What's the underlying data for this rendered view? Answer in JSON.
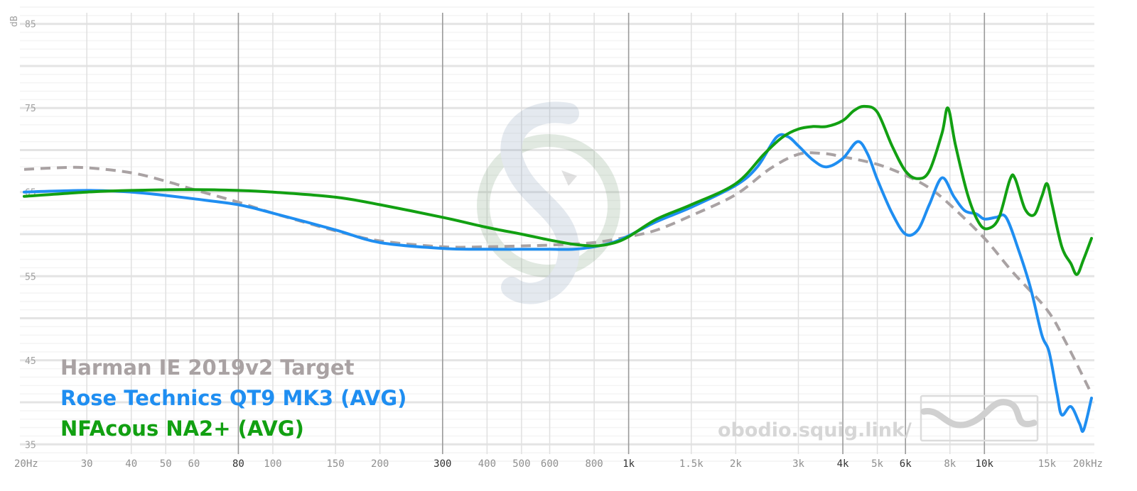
{
  "chart_data": {
    "type": "line",
    "xscale": "log",
    "xlim": [
      20,
      20000
    ],
    "ylim": [
      33,
      87
    ],
    "ylabel": "dB",
    "yticks": [
      {
        "v": 85,
        "label": "85"
      },
      {
        "v": 75,
        "label": "75"
      },
      {
        "v": 65,
        "label": "65"
      },
      {
        "v": 55,
        "label": "55"
      },
      {
        "v": 45,
        "label": "45"
      },
      {
        "v": 35,
        "label": "35"
      }
    ],
    "xticks": [
      {
        "v": 20,
        "label": "20Hz",
        "major": false
      },
      {
        "v": 30,
        "label": "30",
        "major": false
      },
      {
        "v": 40,
        "label": "40",
        "major": false
      },
      {
        "v": 50,
        "label": "50",
        "major": false
      },
      {
        "v": 60,
        "label": "60",
        "major": false
      },
      {
        "v": 80,
        "label": "80",
        "major": true
      },
      {
        "v": 100,
        "label": "100",
        "major": false
      },
      {
        "v": 150,
        "label": "150",
        "major": false
      },
      {
        "v": 200,
        "label": "200",
        "major": false
      },
      {
        "v": 300,
        "label": "300",
        "major": true
      },
      {
        "v": 400,
        "label": "400",
        "major": false
      },
      {
        "v": 500,
        "label": "500",
        "major": false
      },
      {
        "v": 600,
        "label": "600",
        "major": false
      },
      {
        "v": 800,
        "label": "800",
        "major": false
      },
      {
        "v": 1000,
        "label": "1k",
        "major": true
      },
      {
        "v": 1500,
        "label": "1.5k",
        "major": false
      },
      {
        "v": 2000,
        "label": "2k",
        "major": false
      },
      {
        "v": 3000,
        "label": "3k",
        "major": false
      },
      {
        "v": 4000,
        "label": "4k",
        "major": true
      },
      {
        "v": 5000,
        "label": "5k",
        "major": false
      },
      {
        "v": 6000,
        "label": "6k",
        "major": true
      },
      {
        "v": 8000,
        "label": "8k",
        "major": false
      },
      {
        "v": 10000,
        "label": "10k",
        "major": true
      },
      {
        "v": 15000,
        "label": "15k",
        "major": false
      },
      {
        "v": 20000,
        "label": "20kHz",
        "major": false
      }
    ],
    "legend_position": "bottom-left",
    "series": [
      {
        "name": "Harman IE 2019v2 Target",
        "color": "#a9a2a3",
        "dashed": true,
        "points": [
          [
            20,
            67.7
          ],
          [
            25,
            67.9
          ],
          [
            30,
            67.9
          ],
          [
            40,
            67.3
          ],
          [
            50,
            66.3
          ],
          [
            60,
            65.3
          ],
          [
            80,
            63.8
          ],
          [
            100,
            62.5
          ],
          [
            150,
            60.4
          ],
          [
            200,
            59.2
          ],
          [
            300,
            58.5
          ],
          [
            400,
            58.5
          ],
          [
            500,
            58.6
          ],
          [
            600,
            58.7
          ],
          [
            800,
            59.0
          ],
          [
            1000,
            59.7
          ],
          [
            1200,
            60.5
          ],
          [
            1500,
            62.2
          ],
          [
            2000,
            64.7
          ],
          [
            2500,
            67.8
          ],
          [
            3000,
            69.5
          ],
          [
            3500,
            69.6
          ],
          [
            4000,
            69.2
          ],
          [
            5000,
            68.3
          ],
          [
            6000,
            67.0
          ],
          [
            7000,
            65.5
          ],
          [
            8000,
            63.5
          ],
          [
            10000,
            59.5
          ],
          [
            12000,
            55.5
          ],
          [
            15000,
            51.0
          ],
          [
            17000,
            47.0
          ],
          [
            20000,
            41.0
          ]
        ]
      },
      {
        "name": "Rose Technics QT9 MK3 (AVG)",
        "color": "#1f8ef1",
        "dashed": false,
        "points": [
          [
            20,
            65.0
          ],
          [
            30,
            65.2
          ],
          [
            40,
            65.0
          ],
          [
            50,
            64.6
          ],
          [
            60,
            64.2
          ],
          [
            80,
            63.5
          ],
          [
            100,
            62.5
          ],
          [
            150,
            60.5
          ],
          [
            200,
            59.0
          ],
          [
            300,
            58.3
          ],
          [
            400,
            58.2
          ],
          [
            500,
            58.2
          ],
          [
            600,
            58.2
          ],
          [
            700,
            58.2
          ],
          [
            800,
            58.5
          ],
          [
            900,
            59.0
          ],
          [
            1000,
            59.8
          ],
          [
            1200,
            61.5
          ],
          [
            1500,
            63.2
          ],
          [
            2000,
            65.8
          ],
          [
            2300,
            68.0
          ],
          [
            2600,
            71.5
          ],
          [
            2800,
            71.6
          ],
          [
            3000,
            70.5
          ],
          [
            3300,
            68.8
          ],
          [
            3600,
            68.0
          ],
          [
            4000,
            69.0
          ],
          [
            4400,
            71.0
          ],
          [
            4700,
            69.5
          ],
          [
            5000,
            66.5
          ],
          [
            5500,
            62.5
          ],
          [
            6000,
            60.0
          ],
          [
            6500,
            60.5
          ],
          [
            7000,
            63.5
          ],
          [
            7600,
            66.7
          ],
          [
            8200,
            64.5
          ],
          [
            8800,
            62.8
          ],
          [
            9500,
            62.4
          ],
          [
            10000,
            61.8
          ],
          [
            10800,
            62.0
          ],
          [
            11500,
            62.0
          ],
          [
            12500,
            58.0
          ],
          [
            13500,
            53.5
          ],
          [
            14500,
            48.0
          ],
          [
            15200,
            46.0
          ],
          [
            16000,
            41.0
          ],
          [
            16500,
            38.5
          ],
          [
            17500,
            39.5
          ],
          [
            18500,
            37.5
          ],
          [
            19000,
            36.7
          ],
          [
            20000,
            40.5
          ]
        ]
      },
      {
        "name": "NFAcous NA2+ (AVG)",
        "color": "#12a012",
        "dashed": false,
        "points": [
          [
            20,
            64.5
          ],
          [
            30,
            65.0
          ],
          [
            40,
            65.2
          ],
          [
            60,
            65.3
          ],
          [
            80,
            65.2
          ],
          [
            100,
            65.0
          ],
          [
            150,
            64.4
          ],
          [
            200,
            63.5
          ],
          [
            300,
            62.0
          ],
          [
            400,
            60.8
          ],
          [
            500,
            60.0
          ],
          [
            600,
            59.3
          ],
          [
            700,
            58.8
          ],
          [
            800,
            58.6
          ],
          [
            900,
            58.9
          ],
          [
            1000,
            59.7
          ],
          [
            1200,
            61.8
          ],
          [
            1500,
            63.5
          ],
          [
            2000,
            66.0
          ],
          [
            2400,
            69.5
          ],
          [
            2700,
            71.5
          ],
          [
            3000,
            72.5
          ],
          [
            3300,
            72.8
          ],
          [
            3600,
            72.8
          ],
          [
            4000,
            73.5
          ],
          [
            4300,
            74.7
          ],
          [
            4600,
            75.2
          ],
          [
            5000,
            74.5
          ],
          [
            5500,
            70.5
          ],
          [
            6000,
            67.5
          ],
          [
            6500,
            66.6
          ],
          [
            7000,
            67.5
          ],
          [
            7600,
            72.0
          ],
          [
            7900,
            75.0
          ],
          [
            8300,
            70.5
          ],
          [
            9000,
            64.5
          ],
          [
            9700,
            61.2
          ],
          [
            10300,
            60.7
          ],
          [
            11000,
            62.0
          ],
          [
            11800,
            66.5
          ],
          [
            12200,
            66.6
          ],
          [
            13000,
            63.0
          ],
          [
            13800,
            62.3
          ],
          [
            14500,
            64.5
          ],
          [
            15000,
            66.0
          ],
          [
            15500,
            63.5
          ],
          [
            16500,
            58.5
          ],
          [
            17500,
            56.5
          ],
          [
            18200,
            55.2
          ],
          [
            19000,
            57.0
          ],
          [
            20000,
            59.5
          ]
        ]
      }
    ]
  },
  "watermark": "obodio.squig.link/"
}
